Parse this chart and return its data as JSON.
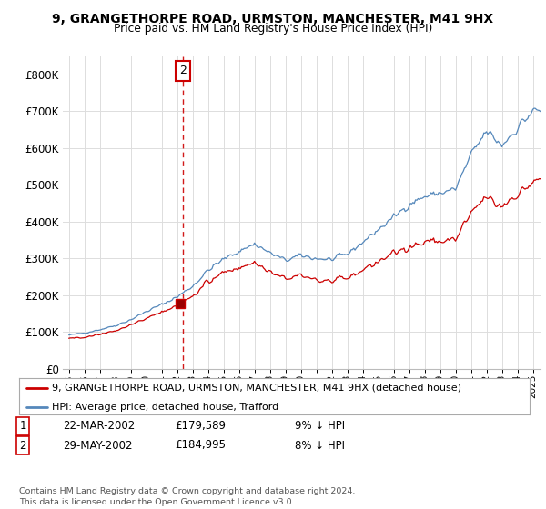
{
  "title": "9, GRANGETHORPE ROAD, URMSTON, MANCHESTER, M41 9HX",
  "subtitle": "Price paid vs. HM Land Registry's House Price Index (HPI)",
  "hpi_color": "#5588bb",
  "price_color": "#cc0000",
  "dashed_color": "#cc0000",
  "legend_label_price": "9, GRANGETHORPE ROAD, URMSTON, MANCHESTER, M41 9HX (detached house)",
  "legend_label_hpi": "HPI: Average price, detached house, Trafford",
  "table_rows": [
    [
      "1",
      "22-MAR-2002",
      "£179,589",
      "9% ↓ HPI"
    ],
    [
      "2",
      "29-MAY-2002",
      "£184,995",
      "8% ↓ HPI"
    ]
  ],
  "footer": "Contains HM Land Registry data © Crown copyright and database right 2024.\nThis data is licensed under the Open Government Licence v3.0.",
  "ylim": [
    0,
    850000
  ],
  "yticks": [
    0,
    100000,
    200000,
    300000,
    400000,
    500000,
    600000,
    700000,
    800000
  ],
  "ytick_labels": [
    "£0",
    "£100K",
    "£200K",
    "£300K",
    "£400K",
    "£500K",
    "£600K",
    "£700K",
    "£800K"
  ],
  "sale1_date": 2002.21,
  "sale1_price": 179589,
  "sale2_date": 2002.37,
  "sale2_price": 184995,
  "bg_color": "#ffffff",
  "grid_color": "#dddddd",
  "xtick_years": [
    1995,
    1996,
    1997,
    1998,
    1999,
    2000,
    2001,
    2002,
    2003,
    2004,
    2005,
    2006,
    2007,
    2008,
    2009,
    2010,
    2011,
    2012,
    2013,
    2014,
    2015,
    2016,
    2017,
    2018,
    2019,
    2020,
    2021,
    2022,
    2023,
    2024,
    2025
  ]
}
